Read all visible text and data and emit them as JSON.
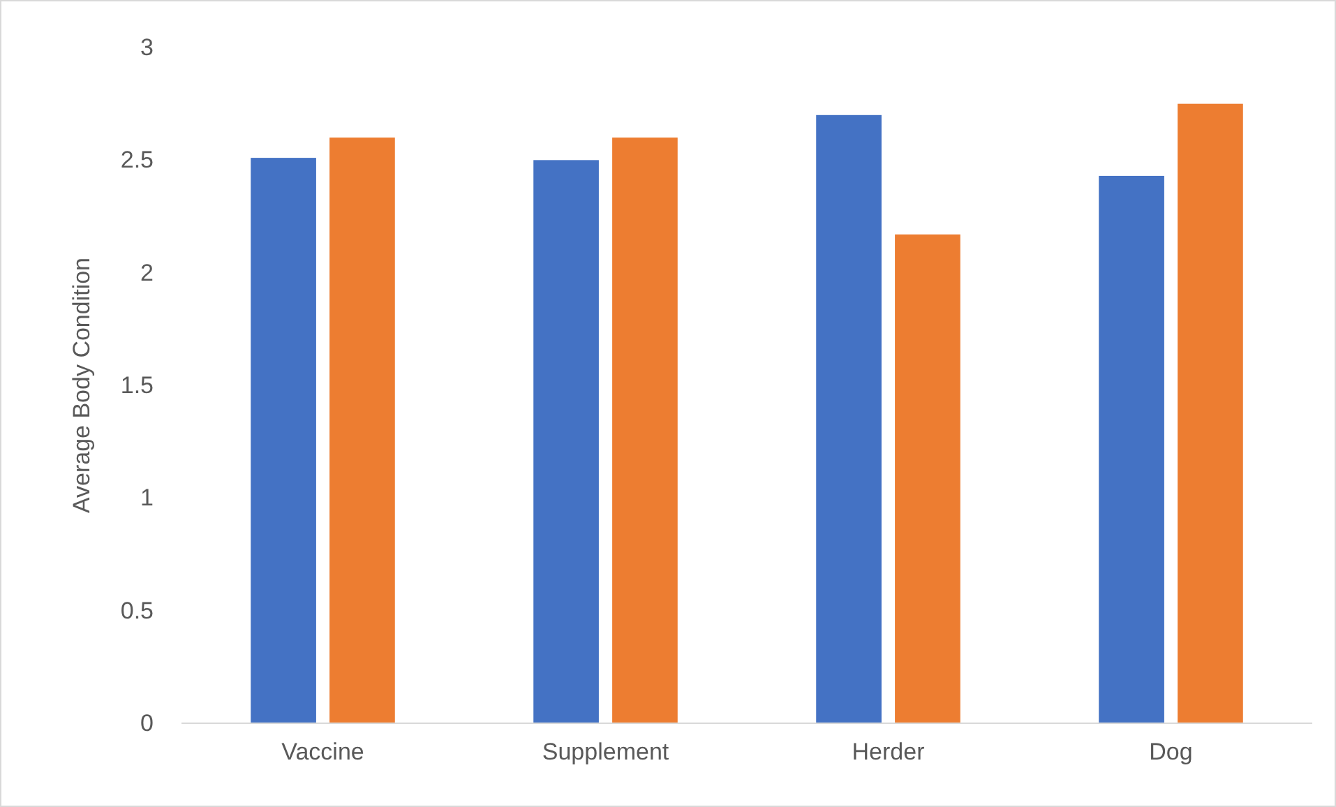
{
  "chart_data": {
    "type": "bar",
    "ylabel": "Average Body Condition",
    "categories": [
      "Vaccine",
      "Supplement",
      "Herder",
      "Dog"
    ],
    "series": [
      {
        "color": "#4472c4",
        "values": [
          2.51,
          2.5,
          2.7,
          2.43
        ]
      },
      {
        "color": "#ed7d31",
        "values": [
          2.6,
          2.6,
          2.17,
          2.75
        ]
      }
    ],
    "ylim": [
      0,
      3
    ],
    "yticks": [
      0,
      0.5,
      1,
      1.5,
      2,
      2.5,
      3
    ]
  }
}
